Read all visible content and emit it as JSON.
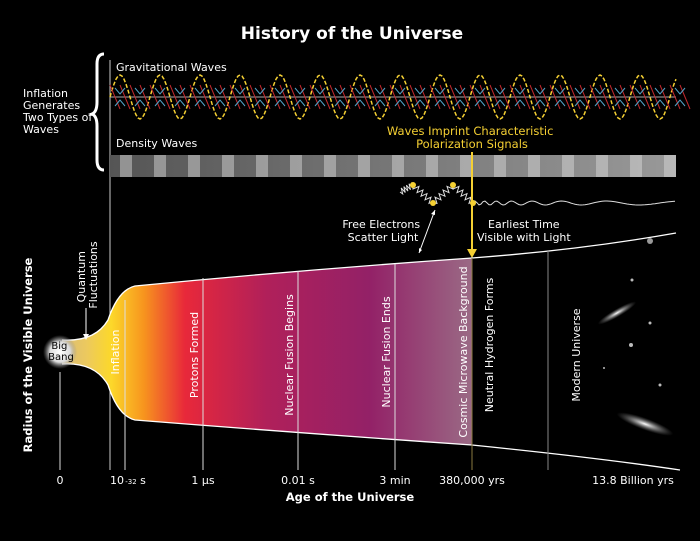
{
  "title": "History of the Universe",
  "waves_section": {
    "brace_label": [
      "Inflation",
      "Generates",
      "Two Types of",
      "Waves"
    ],
    "gravitational_label": "Gravitational Waves",
    "density_label": "Density Waves",
    "imprint_label": [
      "Waves Imprint Characteristic",
      "Polarization Signals"
    ],
    "scatter_label": [
      "Free Electrons",
      "Scatter Light"
    ],
    "earliest_label": [
      "Earliest Time",
      "Visible with Light"
    ]
  },
  "y_axis_label": "Radius of the Visible Universe",
  "x_axis_label": "Age of the Universe",
  "quantum_label": [
    "Quantum",
    "Fluctuations"
  ],
  "big_bang_label": [
    "Big",
    "Bang"
  ],
  "epochs": [
    "Inflation",
    "Protons Formed",
    "Nuclear Fusion Begins",
    "Nuclear Fusion Ends",
    "Cosmic Microwave Background",
    "Neutral Hydrogen Forms",
    "Modern Universe"
  ],
  "ticks": [
    "0",
    "10",
    "-32",
    "s",
    "1 µs",
    "0.01 s",
    "3 min",
    "380,000 yrs",
    "13.8 Billion yrs"
  ],
  "colors": {
    "accent": "#f5d033",
    "red_wave": "#c0282d",
    "blue_wave": "#4fa3c8"
  }
}
